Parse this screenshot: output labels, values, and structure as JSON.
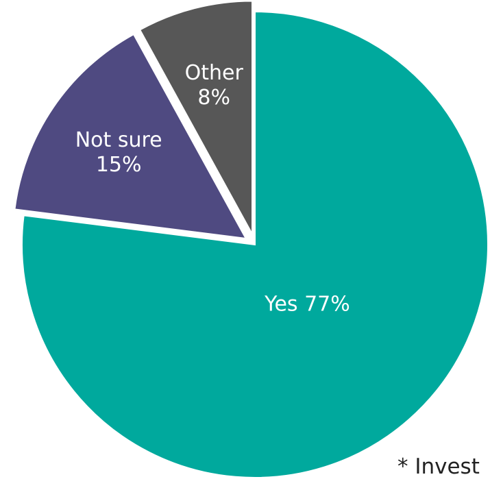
{
  "chart_data": {
    "type": "pie",
    "title": "",
    "slices": [
      {
        "label": "Yes",
        "value_label": "77%",
        "value": 77,
        "color": "#00A99D",
        "exploded": false
      },
      {
        "label": "Not sure",
        "value_label": "15%",
        "value": 15,
        "color": "#4F4A81",
        "exploded": true
      },
      {
        "label": "Other",
        "value_label": "8%",
        "value": 8,
        "color": "#575757",
        "exploded": true
      }
    ],
    "start": "12 o'clock",
    "direction": "clockwise",
    "legend": "none",
    "footnote": "* Invest"
  }
}
